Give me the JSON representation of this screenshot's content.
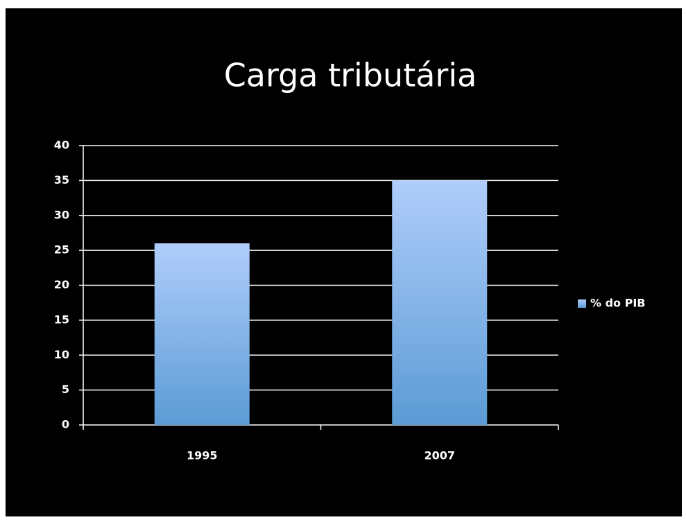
{
  "chart_data": {
    "type": "bar",
    "title": "Carga tributária",
    "categories": [
      "1995",
      "2007"
    ],
    "series": [
      {
        "name": "% do PIB",
        "color": "#5b9bd5",
        "values": [
          26,
          35
        ]
      }
    ],
    "ylim": [
      0,
      40
    ],
    "yticks": [
      0,
      5,
      10,
      15,
      20,
      25,
      30,
      35,
      40
    ],
    "grid": true,
    "legend": "right"
  }
}
